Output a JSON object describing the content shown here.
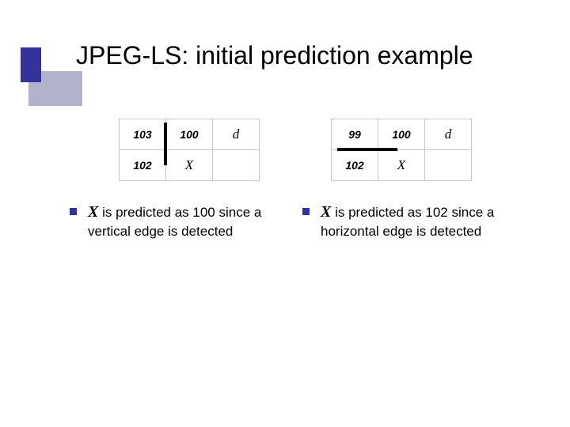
{
  "colors": {
    "accent_dark": "#333399",
    "accent_light": "#b2b2cc",
    "grid_border": "#c7c7c7",
    "edge_mark": "#000000",
    "text": "#000000",
    "background": "#ffffff"
  },
  "title": "JPEG-LS: initial prediction example",
  "typography": {
    "title_fontsize": 32,
    "body_fontsize": 17,
    "cell_fontsize": 14
  },
  "left": {
    "table": {
      "type": "table",
      "rows": [
        [
          "103",
          "100",
          "d"
        ],
        [
          "102",
          "X",
          ""
        ]
      ],
      "columns": 3,
      "emphasis_edge": "vertical",
      "edge_after_col": 0
    },
    "bullet_symbol": "X",
    "bullet_text_rest": " is predicted as 100 since a vertical edge is detected"
  },
  "right": {
    "table": {
      "type": "table",
      "rows": [
        [
          "99",
          "100",
          "d"
        ],
        [
          "102",
          "X",
          ""
        ]
      ],
      "columns": 3,
      "emphasis_edge": "horizontal",
      "edge_below_row": 0
    },
    "bullet_symbol": "X",
    "bullet_text_rest": " is predicted as 102 since a horizontal edge is detected"
  }
}
